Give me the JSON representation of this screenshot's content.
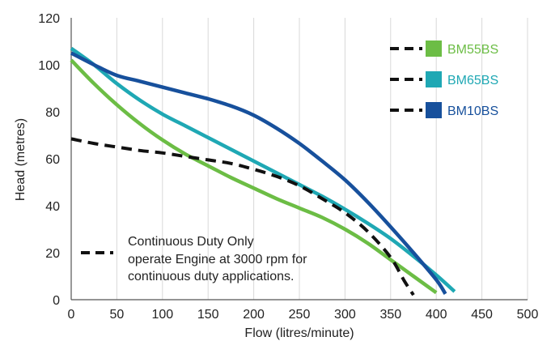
{
  "chart_data": {
    "type": "line",
    "title": "",
    "xlabel": "Flow (litres/minute)",
    "ylabel": "Head (metres)",
    "xlim": [
      0,
      500
    ],
    "ylim": [
      0,
      120
    ],
    "xticks": [
      0,
      50,
      100,
      150,
      200,
      250,
      300,
      350,
      400,
      450,
      500
    ],
    "yticks": [
      0,
      20,
      40,
      60,
      80,
      100,
      120
    ],
    "grid": "vertical",
    "legend_position": "top-right",
    "series": [
      {
        "name": "BM55BS",
        "color": "#6cbd45",
        "style": "solid",
        "points": [
          [
            0,
            102
          ],
          [
            25,
            92
          ],
          [
            50,
            83
          ],
          [
            75,
            75
          ],
          [
            100,
            68
          ],
          [
            125,
            62
          ],
          [
            150,
            57
          ],
          [
            175,
            52
          ],
          [
            200,
            47.5
          ],
          [
            225,
            43
          ],
          [
            250,
            39
          ],
          [
            275,
            35
          ],
          [
            300,
            30
          ],
          [
            325,
            24
          ],
          [
            350,
            17
          ],
          [
            375,
            10
          ],
          [
            400,
            3
          ]
        ]
      },
      {
        "name": "BM65BS",
        "color": "#1fa8b4",
        "style": "solid",
        "points": [
          [
            0,
            107
          ],
          [
            25,
            100
          ],
          [
            50,
            92
          ],
          [
            75,
            85
          ],
          [
            100,
            79
          ],
          [
            125,
            74
          ],
          [
            150,
            69
          ],
          [
            175,
            64
          ],
          [
            200,
            59
          ],
          [
            225,
            54
          ],
          [
            250,
            49
          ],
          [
            275,
            44
          ],
          [
            300,
            38.5
          ],
          [
            325,
            32.5
          ],
          [
            350,
            26
          ],
          [
            375,
            18.5
          ],
          [
            400,
            10.5
          ],
          [
            420,
            3.5
          ]
        ]
      },
      {
        "name": "BM10BS",
        "color": "#17509c",
        "style": "solid",
        "points": [
          [
            0,
            105
          ],
          [
            25,
            100
          ],
          [
            50,
            95.5
          ],
          [
            75,
            93
          ],
          [
            100,
            90.5
          ],
          [
            125,
            88
          ],
          [
            150,
            85.5
          ],
          [
            175,
            82.5
          ],
          [
            200,
            78.5
          ],
          [
            225,
            73
          ],
          [
            250,
            66.5
          ],
          [
            275,
            59
          ],
          [
            300,
            51
          ],
          [
            325,
            41.5
          ],
          [
            350,
            31
          ],
          [
            375,
            20
          ],
          [
            400,
            8.5
          ],
          [
            410,
            2.5
          ]
        ]
      },
      {
        "name": "Continuous Duty Only",
        "color": "#111111",
        "style": "dashed",
        "points": [
          [
            0,
            68.5
          ],
          [
            25,
            66.5
          ],
          [
            50,
            65
          ],
          [
            75,
            63.5
          ],
          [
            100,
            62.5
          ],
          [
            125,
            61
          ],
          [
            150,
            59.5
          ],
          [
            175,
            58
          ],
          [
            200,
            55.5
          ],
          [
            225,
            52.5
          ],
          [
            250,
            48.5
          ],
          [
            275,
            43
          ],
          [
            300,
            37
          ],
          [
            325,
            29
          ],
          [
            350,
            18
          ],
          [
            365,
            8
          ],
          [
            375,
            2
          ]
        ]
      }
    ],
    "legend": [
      {
        "label": "BM55BS",
        "color": "#6cbd45"
      },
      {
        "label": "BM65BS",
        "color": "#1fa8b4"
      },
      {
        "label": "BM10BS",
        "color": "#17509c"
      }
    ],
    "annotation": {
      "lines": [
        "Continuous Duty Only",
        "operate Engine at 3000 rpm for",
        "continuous duty applications."
      ]
    }
  }
}
